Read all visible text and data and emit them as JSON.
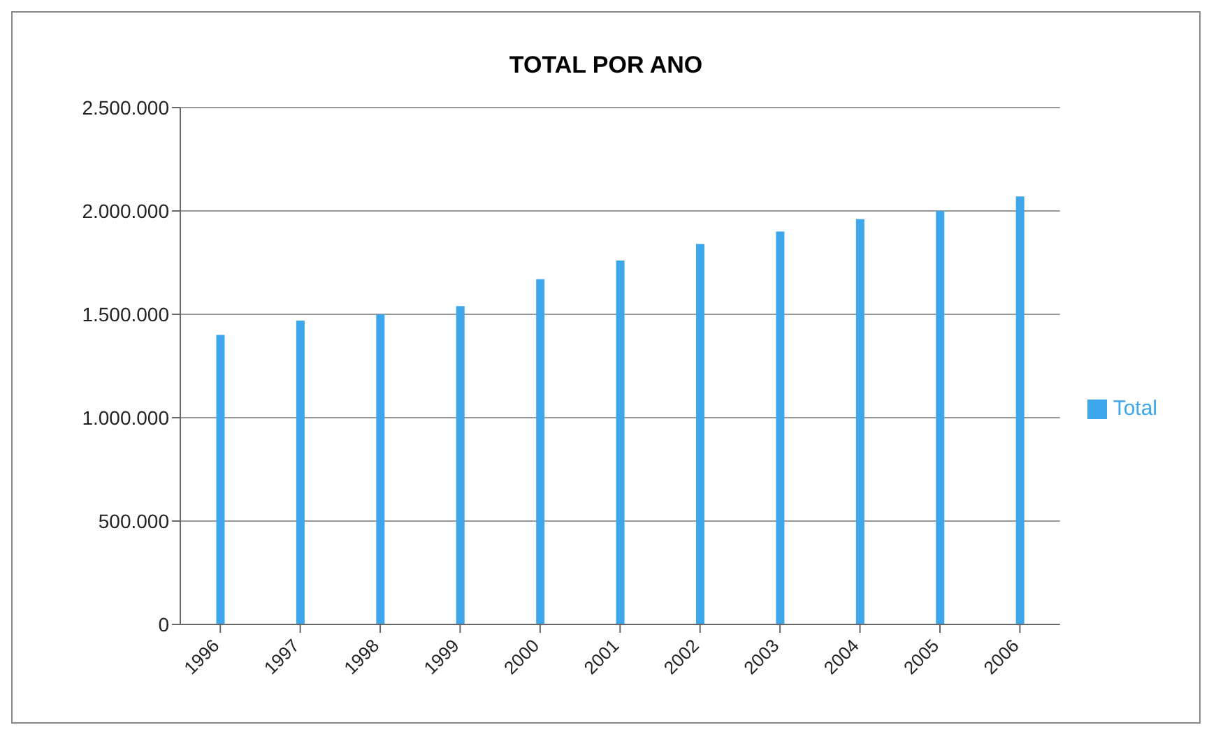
{
  "chart_data": {
    "type": "bar",
    "title": "TOTAL POR ANO",
    "categories": [
      "1996",
      "1997",
      "1998",
      "1999",
      "2000",
      "2001",
      "2002",
      "2003",
      "2004",
      "2005",
      "2006"
    ],
    "series": [
      {
        "name": "Total",
        "color": "#3ea7ec",
        "values": [
          1400000,
          1470000,
          1500000,
          1540000,
          1670000,
          1760000,
          1840000,
          1900000,
          1960000,
          2000000,
          2070000
        ]
      }
    ],
    "ylim": [
      0,
      2500000
    ],
    "yticks": [
      {
        "value": 0,
        "label": "0"
      },
      {
        "value": 500000,
        "label": "500.000"
      },
      {
        "value": 1000000,
        "label": "1.000.000"
      },
      {
        "value": 1500000,
        "label": "1.500.000"
      },
      {
        "value": 2000000,
        "label": "2.000.000"
      },
      {
        "value": 2500000,
        "label": "2.500.000"
      }
    ],
    "grid": "y",
    "legend": "right"
  }
}
